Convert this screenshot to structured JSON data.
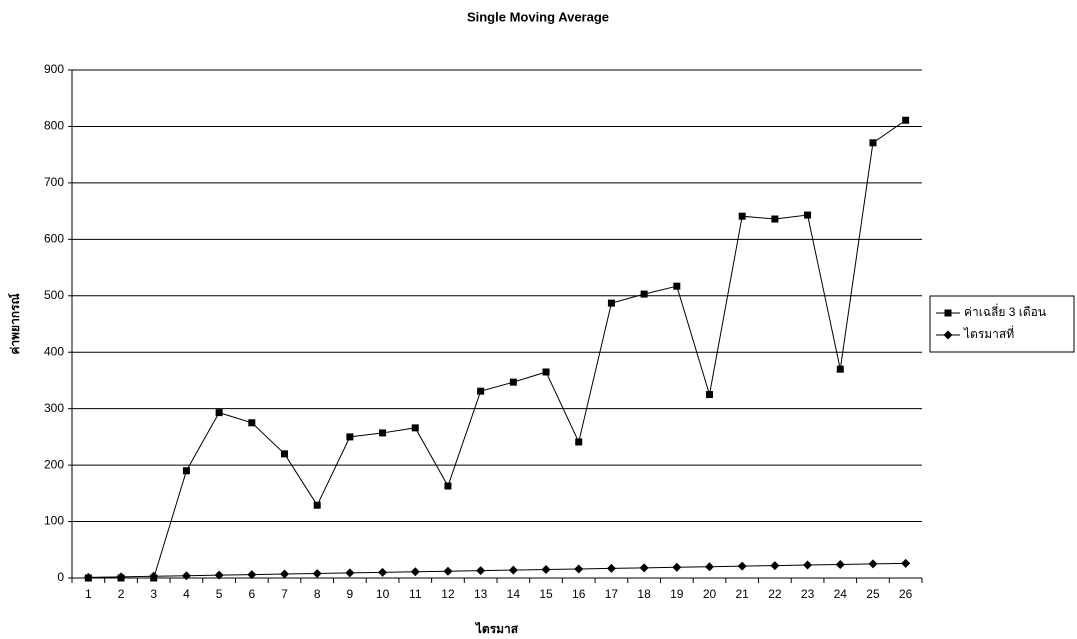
{
  "chart_data": {
    "type": "line",
    "title": "Single Moving Average",
    "x_label": "ไตรมาส",
    "y_label": "ค่าพยากรณ์",
    "categories": [
      "1",
      "2",
      "3",
      "4",
      "5",
      "6",
      "7",
      "8",
      "9",
      "10",
      "11",
      "12",
      "13",
      "14",
      "15",
      "16",
      "17",
      "18",
      "19",
      "20",
      "21",
      "22",
      "23",
      "24",
      "25",
      "26"
    ],
    "series": [
      {
        "name": "ค่าเฉลี่ย 3 เดือน",
        "color": "#000000",
        "marker": "square",
        "values": [
          0,
          0,
          0,
          190,
          293,
          275,
          220,
          129,
          250,
          257,
          266,
          163,
          331,
          347,
          365,
          241,
          487,
          503,
          517,
          325,
          641,
          636,
          643,
          370,
          771,
          811
        ]
      },
      {
        "name": "ไตรมาสที่",
        "color": "#000000",
        "marker": "diamond",
        "values": [
          1,
          2,
          3,
          4,
          5,
          6,
          7,
          8,
          9,
          10,
          11,
          12,
          13,
          14,
          15,
          16,
          17,
          18,
          19,
          20,
          21,
          22,
          23,
          24,
          25,
          26
        ]
      }
    ],
    "ylim": [
      0,
      900
    ],
    "yticks": [
      0,
      100,
      200,
      300,
      400,
      500,
      600,
      700,
      800,
      900
    ],
    "grid": true,
    "legend": "right"
  }
}
